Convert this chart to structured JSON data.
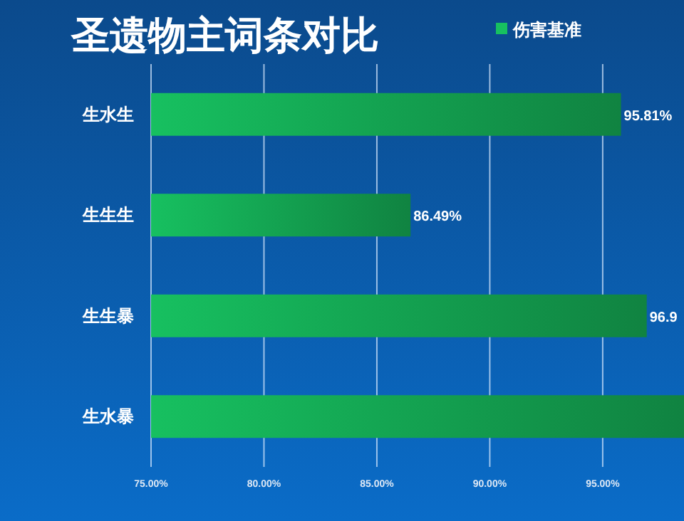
{
  "chart_data": {
    "type": "bar",
    "orientation": "horizontal",
    "title": "圣遗物主词条对比",
    "categories": [
      "生水生",
      "生生生",
      "生生暴",
      "生水暴"
    ],
    "series": [
      {
        "name": "伤害基准",
        "color": "#17c060",
        "values": [
          95.81,
          86.49,
          96.95,
          98.6
        ],
        "value_labels": [
          "95.81%",
          "86.49%",
          "96.9",
          null
        ]
      }
    ],
    "xlim": [
      75,
      98.6
    ],
    "xticks": [
      {
        "value": 75,
        "label": "75.00%"
      },
      {
        "value": 80,
        "label": "80.00%"
      },
      {
        "value": 85,
        "label": "85.00%"
      },
      {
        "value": 90,
        "label": "90.00%"
      },
      {
        "value": 95,
        "label": "95.00%"
      }
    ],
    "grid": "x",
    "legend": "top right"
  }
}
